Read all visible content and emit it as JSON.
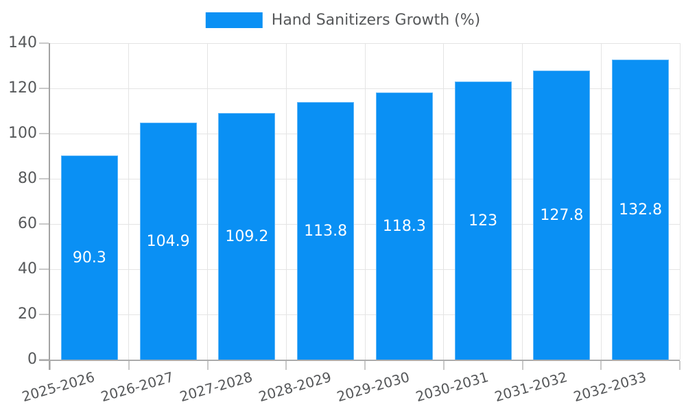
{
  "chart_data": {
    "type": "bar",
    "title": "Hand Sanitizers Growth (%)",
    "legend_position": "top",
    "categories": [
      "2025-2026",
      "2026-2027",
      "2027-2028",
      "2028-2029",
      "2029-2030",
      "2030-2031",
      "2031-2032",
      "2032-2033"
    ],
    "series": [
      {
        "name": "Hand Sanitizers Growth (%)",
        "values": [
          90.3,
          104.9,
          109.2,
          113.8,
          118.3,
          123,
          127.8,
          132.8
        ]
      }
    ],
    "xlabel": "",
    "ylabel": "",
    "ylim": [
      0,
      140
    ],
    "yticks": [
      0,
      20,
      40,
      60,
      80,
      100,
      120,
      140
    ],
    "grid": true,
    "x_label_rotation_deg": -16,
    "data_label_position": "center",
    "colors": {
      "bar": "#0A90F4",
      "data_label": "#FFFFFF",
      "axis_text": "#56585A",
      "gridline": "#E4E4E4",
      "axis_line": "#A3A3A3",
      "tick": "#C9C9C9",
      "background": "#FFFFFF"
    }
  }
}
